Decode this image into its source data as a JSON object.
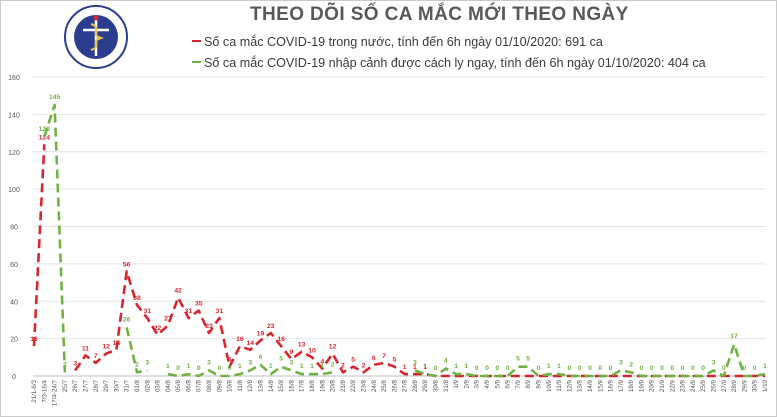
{
  "header": {
    "title": "THEO DÕI SỐ CA MẮC MỚI THEO NGÀY",
    "logo_text_top": "BỘ Y TẾ",
    "logo_text_bottom": "MINISTRY OF HEALTH"
  },
  "legend": [
    {
      "label": "Số ca mắc COVID-19 trong nước, tính đến 6h ngày 01/10/2020: 691 ca",
      "color": "#d7262e"
    },
    {
      "label": "Số ca mắc COVID-19 nhập cảnh được cách ly ngay, tính đến 6h ngày 01/10/2020: 404 ca",
      "color": "#70b244"
    }
  ],
  "chart_data": {
    "type": "line",
    "title": "THEO DÕI SỐ CA MẮC MỚI THEO NGÀY",
    "ylim": [
      0,
      160
    ],
    "yticks": [
      0,
      20,
      40,
      60,
      80,
      100,
      120,
      140,
      160
    ],
    "grid": true,
    "legend_position": "top",
    "categories": [
      "21/1-6/3",
      "7/3-16/4",
      "17/4-24/7",
      "25/7",
      "26/7",
      "27/7",
      "28/7",
      "29/7",
      "30/7",
      "31/7",
      "01/8",
      "02/8",
      "03/8",
      "04/8",
      "05/8",
      "06/8",
      "07/8",
      "08/8",
      "09/8",
      "10/8",
      "11/8",
      "12/8",
      "13/8",
      "14/8",
      "15/8",
      "16/8",
      "17/8",
      "18/8",
      "19/8",
      "20/8",
      "21/8",
      "22/8",
      "23/8",
      "24/8",
      "25/8",
      "26/8",
      "27/8",
      "28/8",
      "29/8",
      "30/8",
      "31/8",
      "1/9",
      "2/9",
      "3/9",
      "4/9",
      "5/9",
      "6/9",
      "7/9",
      "8/9",
      "9/9",
      "10/9",
      "11/9",
      "12/9",
      "13/9",
      "14/9",
      "15/9",
      "16/9",
      "17/9",
      "18/9",
      "19/9",
      "20/9",
      "21/9",
      "22/9",
      "23/9",
      "24/9",
      "25/9",
      "26/9",
      "27/9",
      "28/9",
      "29/9",
      "30/9",
      "1/10"
    ],
    "tick_labels": [
      "21/1-6/3",
      "7/3-16/4",
      "17/4-24/7",
      "25/7",
      "26/7",
      "27/7",
      "28/7",
      "29/7",
      "30/7",
      "31/7",
      "01/8",
      "02/8",
      "03/8",
      "04/8",
      "05/8",
      "06/8",
      "07/8",
      "08/8",
      "09/8",
      "10/8",
      "11/8",
      "12/8",
      "13/8",
      "14/8",
      "15/8",
      "16/8",
      "17/8",
      "18/8",
      "19/8",
      "20/8",
      "21/8",
      "22/8",
      "23/8",
      "24/8",
      "25/8",
      "26/8",
      "27/8",
      "28/8",
      "29/8",
      "30/8",
      "31/8",
      "1/9",
      "2/9",
      "3/9",
      "4/9",
      "5/9",
      "6/9",
      "7/9",
      "8/9",
      "9/9",
      "10/9",
      "11/9",
      "12/9",
      "13/9",
      "14/9",
      "15/9",
      "16/9",
      "17/9",
      "18/9",
      "19/9",
      "20/9",
      "21/9",
      "22/9",
      "23/9",
      "24/9",
      "25/9",
      "26/9",
      "27/9",
      "28/9",
      "29/9",
      "30/9",
      "1/10"
    ],
    "series": [
      {
        "name": "Số ca mắc COVID-19 trong nước",
        "color": "#d7262e",
        "values": [
          16,
          124,
          null,
          null,
          3,
          11,
          7,
          12,
          14,
          56,
          38,
          31,
          22,
          27,
          42,
          31,
          35,
          23,
          31,
          5,
          16,
          14,
          19,
          23,
          16,
          9,
          13,
          10,
          4,
          12,
          2,
          5,
          2,
          6,
          7,
          5,
          1,
          1,
          1,
          0,
          0,
          0,
          0,
          0,
          0,
          0,
          0,
          0,
          0,
          0,
          0,
          0,
          0,
          0,
          0,
          0,
          0,
          0,
          0,
          0,
          0,
          0,
          0,
          0,
          0,
          0,
          0,
          0,
          0,
          0,
          0,
          0
        ],
        "labels": [
          "16",
          "124",
          "",
          "",
          "3",
          "11",
          "7",
          "12",
          "14",
          "56",
          "38",
          "31",
          "22",
          "27",
          "42",
          "31",
          "35",
          "23",
          "31",
          "5",
          "16",
          "14",
          "19",
          "23",
          "16",
          "9",
          "13",
          "10",
          "4",
          "12",
          "2",
          "5",
          "2",
          "6",
          "7",
          "5",
          "1",
          "1",
          "1",
          "",
          "",
          "",
          "",
          "",
          "",
          "",
          "",
          "",
          "",
          "",
          "",
          "",
          "",
          "",
          "",
          "",
          "",
          "",
          "",
          "",
          "",
          "",
          "",
          "",
          "",
          "",
          "",
          "",
          "",
          "",
          "",
          ""
        ]
      },
      {
        "name": "Số ca mắc COVID-19 nhập cảnh được cách ly ngay",
        "color": "#70b244",
        "values": [
          null,
          128,
          145,
          2,
          null,
          null,
          null,
          null,
          null,
          26,
          2,
          3,
          null,
          1,
          0,
          1,
          0,
          3,
          0,
          0,
          1,
          3,
          6,
          1,
          5,
          3,
          1,
          1,
          1,
          2,
          null,
          null,
          null,
          null,
          null,
          null,
          null,
          3,
          1,
          0,
          4,
          1,
          1,
          0,
          0,
          0,
          0,
          5,
          5,
          0,
          1,
          1,
          0,
          0,
          0,
          0,
          0,
          3,
          2,
          0,
          0,
          0,
          0,
          0,
          0,
          0,
          3,
          0,
          17,
          0,
          0,
          1
        ],
        "labels": [
          "",
          "128",
          "145",
          "2",
          "",
          "",
          "",
          "",
          "",
          "26",
          "2",
          "3",
          "",
          "1",
          "0",
          "1",
          "0",
          "3",
          "0",
          "0",
          "1",
          "3",
          "6",
          "1",
          "5",
          "3",
          "1",
          "1",
          "1",
          "2",
          "",
          "",
          "",
          "",
          "",
          "",
          "",
          "3",
          "1",
          "0",
          "4",
          "1",
          "1",
          "0",
          "0",
          "0",
          "0",
          "5",
          "5",
          "0",
          "1",
          "1",
          "0",
          "0",
          "0",
          "0",
          "0",
          "3",
          "2",
          "0",
          "0",
          "0",
          "0",
          "0",
          "0",
          "0",
          "3",
          "0",
          "17",
          "0",
          "0",
          "1"
        ]
      }
    ]
  }
}
